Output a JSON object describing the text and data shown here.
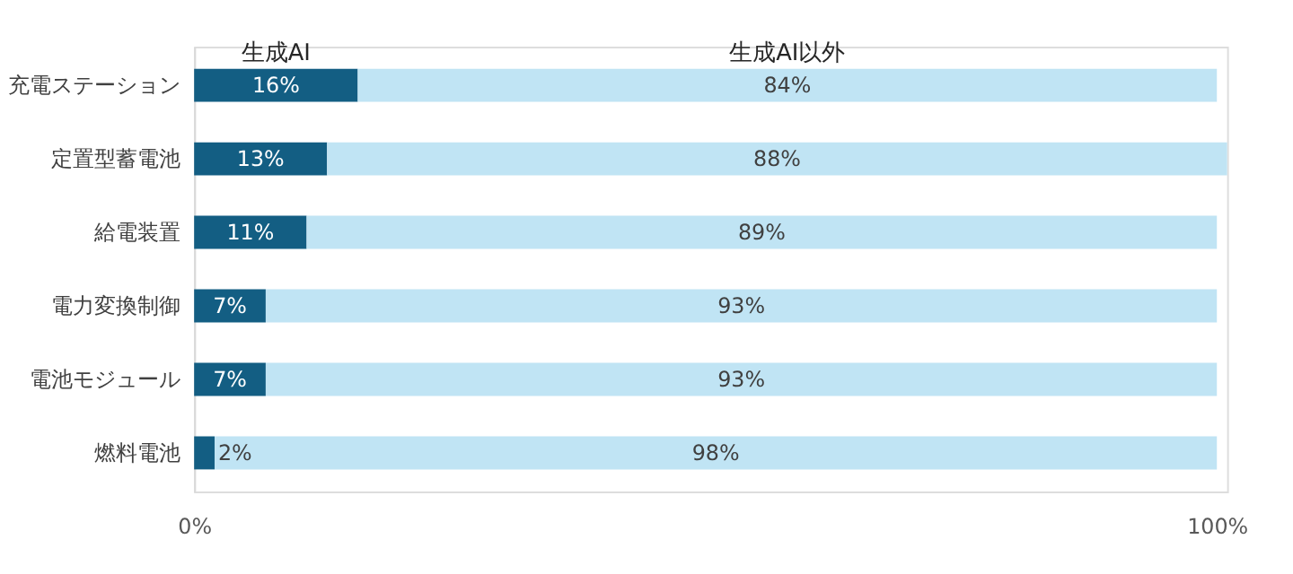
{
  "chart_data": {
    "type": "bar",
    "orientation": "horizontal",
    "stacked": true,
    "categories": [
      "充電ステーション",
      "定置型蓄電池",
      "給電装置",
      "電力変換制御",
      "電池モジュール",
      "燃料電池"
    ],
    "series": [
      {
        "name": "生成AI",
        "color": "#135e83",
        "values": [
          16,
          13,
          11,
          7,
          7,
          2
        ],
        "value_labels": [
          "16%",
          "13%",
          "11%",
          "7%",
          "7%",
          "2%"
        ]
      },
      {
        "name": "生成AI以外",
        "color": "#c0e4f4",
        "values": [
          84,
          88,
          89,
          93,
          93,
          98
        ],
        "value_labels": [
          "84%",
          "88%",
          "89%",
          "93%",
          "93%",
          "98%"
        ]
      }
    ],
    "xlim": [
      0,
      101
    ],
    "xticks": [
      {
        "value": 0,
        "label": "0%"
      },
      {
        "value": 100,
        "label": "100%"
      }
    ],
    "grid": false,
    "legend": false
  }
}
